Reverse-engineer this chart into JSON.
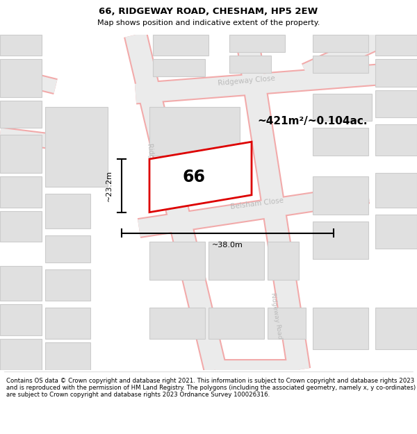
{
  "title": "66, RIDGEWAY ROAD, CHESHAM, HP5 2EW",
  "subtitle": "Map shows position and indicative extent of the property.",
  "footer": "Contains OS data © Crown copyright and database right 2021. This information is subject to Crown copyright and database rights 2023 and is reproduced with the permission of HM Land Registry. The polygons (including the associated geometry, namely x, y co-ordinates) are subject to Crown copyright and database rights 2023 Ordnance Survey 100026316.",
  "area_label": "~421m²/~0.104ac.",
  "number_label": "66",
  "width_label": "~38.0m",
  "height_label": "~23.2m",
  "map_bg": "#ffffff",
  "road_fill": "#ebebeb",
  "road_stroke": "#f2aaaa",
  "building_fill": "#e0e0e0",
  "building_stroke": "#cccccc",
  "plot_stroke": "#dd0000",
  "street_label_color": "#bbbbbb"
}
